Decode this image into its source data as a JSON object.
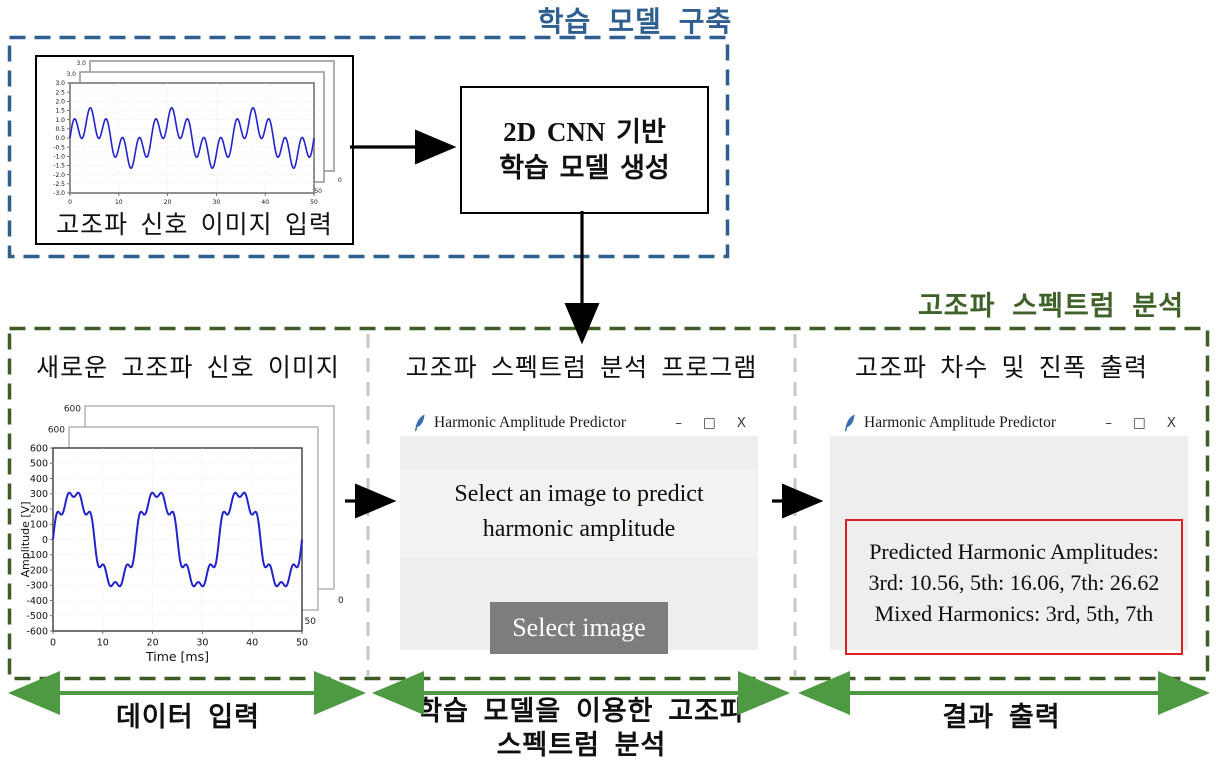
{
  "top_section": {
    "title": "학습 모델 구축",
    "input_image_caption": "고조파 신호 이미지 입력",
    "cnn_line1_en": "2D CNN",
    "cnn_line1_ko": " 기반",
    "cnn_line2": "학습 모델 생성"
  },
  "bottom_section": {
    "title": "고조파 스펙트럼 분석",
    "columns": [
      {
        "header": "새로운 고조파 신호 이미지"
      },
      {
        "header": "고조파 스펙트럼 분석 프로그램"
      },
      {
        "header": "고조파 차수 및 진폭 출력"
      }
    ]
  },
  "window_controls": {
    "minimize": "–",
    "maximize": "□",
    "close": "X"
  },
  "predictor_window": {
    "title": "Harmonic Amplitude Predictor",
    "icon": "tk-feather-icon",
    "prompt_line1": "Select an image to predict",
    "prompt_line2": "harmonic amplitude",
    "select_button_label": "Select image"
  },
  "result_window": {
    "title": "Harmonic Amplitude Predictor",
    "icon": "tk-feather-icon",
    "result_line1": "Predicted Harmonic Amplitudes:",
    "result_line2": "3rd: 10.56, 5th: 16.06, 7th: 26.62",
    "result_line3": "Mixed Harmonics: 3rd, 5th, 7th",
    "values": {
      "harmonic_3rd": 10.56,
      "harmonic_5th": 16.06,
      "harmonic_7th": 26.62,
      "mixed_harmonics": "3rd, 5th, 7th"
    }
  },
  "footer": {
    "labels": [
      {
        "line1": "데이터 입력",
        "line2": ""
      },
      {
        "line1": "학습 모델을 이용한 고조파",
        "line2": "스펙트럼 분석"
      },
      {
        "line1": "결과 출력",
        "line2": ""
      }
    ]
  },
  "colors": {
    "train_accent": "#2e5f8e",
    "analysis_accent": "#3f612a",
    "divider_gray": "#c7c7c7",
    "footer_arrow_green": "#4d9a42",
    "signal_blue": "#2323cc",
    "result_border_red": "#dd1f1f",
    "button_gray": "#7d7d7d",
    "window_body_gray": "#efeeee"
  },
  "chart_data": [
    {
      "id": "input_signal_thumb",
      "type": "line",
      "title": "",
      "xlabel": "",
      "ylabel": "",
      "x_range": [
        0,
        50
      ],
      "y_range": [
        -3.0,
        3.0
      ],
      "ytick_step": 0.5,
      "ytick_decimals": 1,
      "xticks": [
        0,
        10,
        20,
        30,
        40,
        50
      ],
      "cycles_in_window": 3,
      "harmonics": [
        {
          "order": 1,
          "amplitude": 0.9
        },
        {
          "order": 5,
          "amplitude": 0.75
        }
      ],
      "color": "#2323cc",
      "grid": true,
      "stacked_frames": 3,
      "stacked_frame_label": "3.0",
      "corner_labels": [
        "50",
        "0"
      ]
    },
    {
      "id": "new_harmonic_signal",
      "type": "line",
      "title": "",
      "xlabel": "Time [ms]",
      "ylabel": "Amplitude [V]",
      "x_range": [
        0,
        50
      ],
      "y_range": [
        -600,
        600
      ],
      "ytick_step": 100,
      "ytick_decimals": 0,
      "xticks": [
        0,
        10,
        20,
        30,
        40,
        50
      ],
      "cycles_in_window": 3,
      "harmonics": [
        {
          "order": 1,
          "amplitude": 310
        },
        {
          "order": 3,
          "amplitude": 21
        },
        {
          "order": 5,
          "amplitude": 31
        },
        {
          "order": 7,
          "amplitude": 41
        }
      ],
      "color": "#2323cc",
      "grid": true,
      "stacked_frames": 3,
      "stacked_frame_label": "600",
      "corner_labels": [
        "50",
        "0"
      ]
    }
  ]
}
